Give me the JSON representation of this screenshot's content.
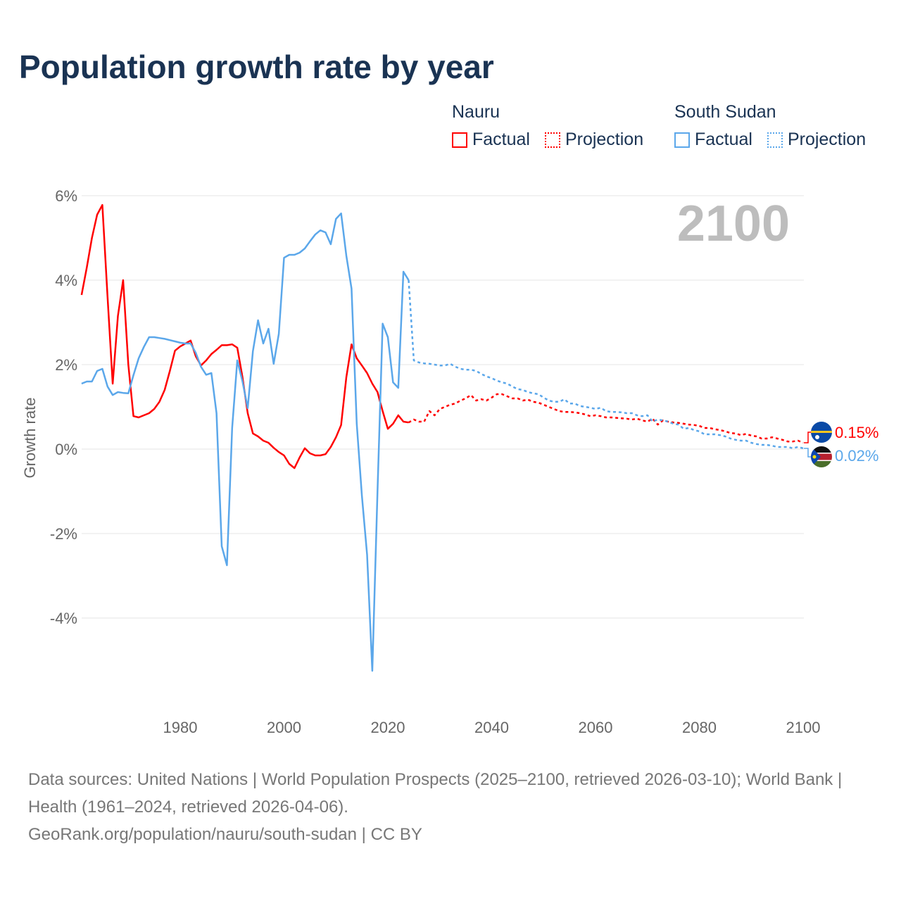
{
  "title": "Population growth rate by year",
  "legend": {
    "groups": [
      {
        "name": "Nauru",
        "factual": "Factual",
        "projection": "Projection",
        "color": "#ff0000"
      },
      {
        "name": "South Sudan",
        "factual": "Factual",
        "projection": "Projection",
        "color": "#5ba7ea"
      }
    ]
  },
  "year_label": "2100",
  "end_labels": {
    "nauru": "0.15%",
    "south_sudan": "0.02%"
  },
  "footer": {
    "line1": "Data sources: United Nations | World Population Prospects (2025–2100, retrieved 2026-03-10); World Bank | Health (1961–2024, retrieved 2026-04-06).",
    "line2": "GeoRank.org/population/nauru/south-sudan | CC BY"
  },
  "chart_data": {
    "type": "line",
    "title": "Population growth rate by year",
    "xlabel": "",
    "ylabel": "Growth rate",
    "xlim": [
      1961,
      2100
    ],
    "ylim": [
      -6,
      6
    ],
    "x_ticks": [
      "1980",
      "2000",
      "2020",
      "2040",
      "2060",
      "2080",
      "2100"
    ],
    "y_ticks": [
      "6%",
      "4%",
      "2%",
      "0%",
      "-2%",
      "-4%"
    ],
    "y_tick_values": [
      6,
      4,
      2,
      0,
      -2,
      -4
    ],
    "x_tick_values": [
      1980,
      2000,
      2020,
      2040,
      2060,
      2080,
      2100
    ],
    "grid": true,
    "series": [
      {
        "name": "Nauru Factual",
        "color": "#ff0000",
        "style": "solid",
        "start_year": 1961,
        "values": [
          3.65,
          4.3,
          5.0,
          5.55,
          5.78,
          3.6,
          1.55,
          3.15,
          4.0,
          2.0,
          0.78,
          0.75,
          0.8,
          0.85,
          0.95,
          1.12,
          1.4,
          1.85,
          2.33,
          2.43,
          2.5,
          2.57,
          2.2,
          1.98,
          2.1,
          2.25,
          2.35,
          2.46,
          2.46,
          2.48,
          2.4,
          1.7,
          0.85,
          0.37,
          0.3,
          0.2,
          0.15,
          0.03,
          -0.07,
          -0.15,
          -0.35,
          -0.45,
          -0.2,
          0.02,
          -0.1,
          -0.15,
          -0.15,
          -0.12,
          0.05,
          0.28,
          0.57,
          1.7,
          2.48,
          2.15,
          1.98,
          1.8,
          1.55,
          1.35,
          0.9,
          0.48,
          0.6,
          0.8,
          0.65,
          0.63
        ]
      },
      {
        "name": "Nauru Projection",
        "color": "#ff0000",
        "style": "dotted",
        "start_year": 2024,
        "values": [
          0.63,
          0.7,
          0.65,
          0.65,
          0.9,
          0.8,
          0.95,
          1.0,
          1.05,
          1.08,
          1.15,
          1.2,
          1.28,
          1.15,
          1.18,
          1.15,
          1.22,
          1.3,
          1.3,
          1.25,
          1.2,
          1.2,
          1.15,
          1.17,
          1.12,
          1.1,
          1.05,
          1.0,
          0.95,
          0.9,
          0.88,
          0.88,
          0.87,
          0.85,
          0.82,
          0.78,
          0.8,
          0.78,
          0.75,
          0.75,
          0.74,
          0.73,
          0.72,
          0.7,
          0.72,
          0.68,
          0.65,
          0.72,
          0.58,
          0.68,
          0.65,
          0.63,
          0.62,
          0.6,
          0.58,
          0.57,
          0.55,
          0.5,
          0.5,
          0.47,
          0.45,
          0.42,
          0.38,
          0.37,
          0.33,
          0.36,
          0.32,
          0.3,
          0.25,
          0.25,
          0.28,
          0.25,
          0.22,
          0.18,
          0.18,
          0.2,
          0.15
        ]
      },
      {
        "name": "South Sudan Factual",
        "color": "#5ba7ea",
        "style": "solid",
        "start_year": 1961,
        "values": [
          1.55,
          1.6,
          1.6,
          1.85,
          1.9,
          1.48,
          1.28,
          1.35,
          1.33,
          1.32,
          1.75,
          2.15,
          2.42,
          2.65,
          2.65,
          2.63,
          2.61,
          2.58,
          2.55,
          2.52,
          2.5,
          2.5,
          2.28,
          1.95,
          1.76,
          1.8,
          0.85,
          -2.3,
          -2.75,
          0.5,
          2.1,
          1.6,
          0.97,
          2.32,
          3.05,
          2.5,
          2.85,
          2.02,
          2.73,
          4.53,
          4.6,
          4.6,
          4.65,
          4.75,
          4.92,
          5.08,
          5.18,
          5.13,
          4.85,
          5.45,
          5.58,
          4.58,
          3.8,
          0.6,
          -1.1,
          -2.5,
          -5.25,
          -1.0,
          2.97,
          2.65,
          1.58,
          1.45,
          4.2,
          4.0
        ]
      },
      {
        "name": "South Sudan Projection",
        "color": "#5ba7ea",
        "style": "dotted",
        "start_year": 2024,
        "values": [
          4.0,
          2.1,
          2.05,
          2.03,
          2.02,
          2.0,
          1.98,
          1.98,
          2.02,
          1.95,
          1.9,
          1.88,
          1.88,
          1.85,
          1.78,
          1.72,
          1.68,
          1.62,
          1.58,
          1.55,
          1.48,
          1.42,
          1.4,
          1.35,
          1.32,
          1.3,
          1.22,
          1.15,
          1.12,
          1.12,
          1.18,
          1.08,
          1.08,
          1.02,
          1.0,
          0.98,
          0.95,
          0.98,
          0.9,
          0.88,
          0.88,
          0.87,
          0.85,
          0.85,
          0.8,
          0.78,
          0.8,
          0.65,
          0.7,
          0.68,
          0.65,
          0.6,
          0.58,
          0.48,
          0.5,
          0.45,
          0.42,
          0.35,
          0.35,
          0.35,
          0.33,
          0.3,
          0.25,
          0.22,
          0.2,
          0.2,
          0.15,
          0.12,
          0.1,
          0.1,
          0.08,
          0.05,
          0.05,
          0.05,
          0.02,
          0.05,
          0.02
        ]
      }
    ]
  }
}
